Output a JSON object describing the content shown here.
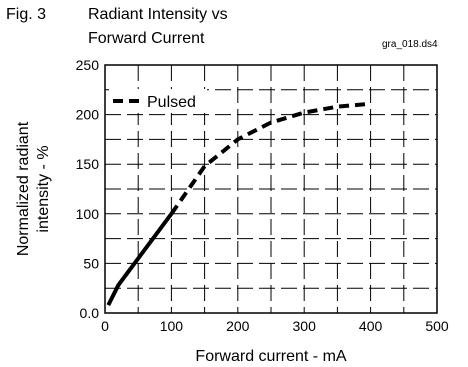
{
  "header": {
    "figure": "Fig. 3",
    "title_line1": "Radiant Intensity vs",
    "title_line2": "Forward Current",
    "file_id": "gra_018.ds4"
  },
  "chart_data": {
    "type": "line",
    "xlabel": "Forward current - mA",
    "ylabel_line1": "Normalized radiant",
    "ylabel_line2": "intensity - %",
    "xlim": [
      0,
      500
    ],
    "ylim": [
      0,
      250
    ],
    "x_ticks": [
      "0",
      "100",
      "200",
      "300",
      "400",
      "500"
    ],
    "y_ticks": [
      "0.0",
      "50",
      "100",
      "150",
      "200",
      "250"
    ],
    "grid": true,
    "legend_position": "top-left",
    "series": [
      {
        "name": "Pulsed",
        "segments": [
          {
            "style": "solid",
            "x": [
              5,
              20,
              50,
              80,
              100
            ],
            "y": [
              8,
              28,
              55,
              82,
              100
            ]
          },
          {
            "style": "dashed",
            "x": [
              100,
              150,
              200,
              250,
              300,
              350,
              400
            ],
            "y": [
              100,
              148,
              175,
              192,
              202,
              208,
              211
            ]
          }
        ]
      }
    ]
  }
}
